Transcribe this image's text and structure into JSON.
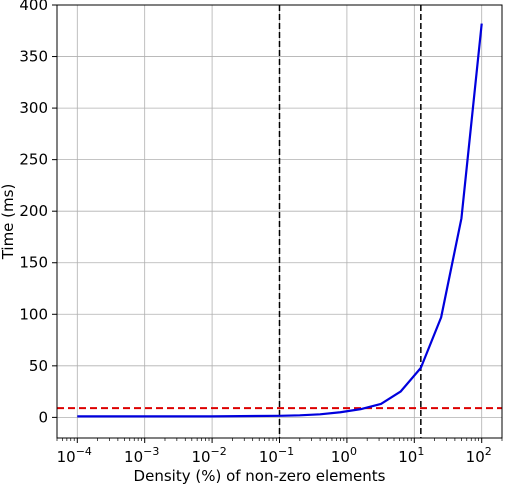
{
  "chart_data": {
    "type": "line",
    "title": "",
    "xlabel": "Density (%) of non-zero elements",
    "ylabel": "Time (ms)",
    "x_scale": "log",
    "xlim": [
      5e-05,
      200
    ],
    "ylim": [
      -20,
      400
    ],
    "x_ticks": [
      {
        "value": 0.0001,
        "base": "10",
        "exp": "−4"
      },
      {
        "value": 0.001,
        "base": "10",
        "exp": "−3"
      },
      {
        "value": 0.01,
        "base": "10",
        "exp": "−2"
      },
      {
        "value": 0.1,
        "base": "10",
        "exp": "−1"
      },
      {
        "value": 1,
        "base": "10",
        "exp": "0"
      },
      {
        "value": 10,
        "base": "10",
        "exp": "1"
      },
      {
        "value": 100,
        "base": "10",
        "exp": "2"
      }
    ],
    "y_ticks": [
      0,
      50,
      100,
      150,
      200,
      250,
      300,
      350,
      400
    ],
    "y_tick_labels": [
      "0",
      "50",
      "100",
      "150",
      "200",
      "250",
      "300",
      "350",
      "400"
    ],
    "grid": true,
    "series": [
      {
        "color": "#0000dd",
        "x": [
          0.0001,
          0.001,
          0.01,
          0.1,
          0.2,
          0.4,
          0.8,
          1.6,
          3.2,
          6.25,
          12.5,
          25,
          50,
          100
        ],
        "y": [
          1,
          1,
          1,
          1.5,
          2,
          3,
          5,
          8,
          13,
          25,
          48,
          97,
          193,
          382
        ]
      }
    ],
    "reference_lines": [
      {
        "orientation": "horizontal",
        "value": 9,
        "color": "#dd0000",
        "style": "dashed"
      },
      {
        "orientation": "vertical",
        "value": 0.1,
        "color": "#000000",
        "style": "dashed"
      },
      {
        "orientation": "vertical",
        "value": 12.5,
        "color": "#000000",
        "style": "dashed"
      }
    ]
  }
}
